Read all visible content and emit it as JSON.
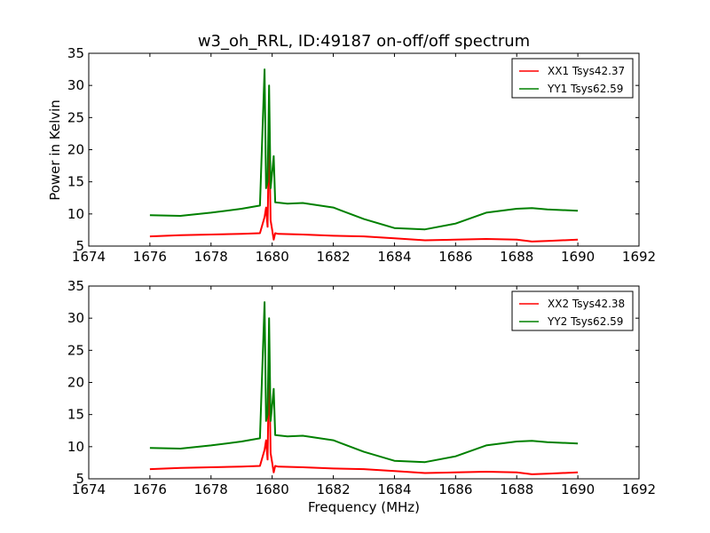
{
  "figure": {
    "title": "w3_oh_RRL, ID:49187 on-off/off spectrum",
    "xlabel": "Frequency (MHz)",
    "ylabel": "Power in Kelvin"
  },
  "chart_data": [
    {
      "type": "line",
      "xlim": [
        1674,
        1692
      ],
      "ylim": [
        5,
        35
      ],
      "xticks": [
        "1674",
        "1676",
        "1678",
        "1680",
        "1682",
        "1684",
        "1686",
        "1688",
        "1690",
        "1692"
      ],
      "yticks": [
        "5",
        "10",
        "15",
        "20",
        "25",
        "30",
        "35"
      ],
      "grid": false,
      "legend_position": "top-right",
      "series": [
        {
          "name": "XX1 Tsys42.37",
          "color": "#ff0000",
          "x": [
            1676.0,
            1677.0,
            1678.0,
            1679.0,
            1679.6,
            1679.75,
            1679.8,
            1679.85,
            1679.9,
            1679.95,
            1680.0,
            1680.05,
            1680.1,
            1680.2,
            1681.0,
            1682.0,
            1683.0,
            1684.0,
            1685.0,
            1686.0,
            1687.0,
            1688.0,
            1688.5,
            1689.0,
            1690.0
          ],
          "y": [
            6.5,
            6.7,
            6.8,
            6.9,
            7.0,
            9.5,
            11.0,
            8.0,
            23.5,
            9.0,
            7.5,
            6.0,
            7.0,
            6.9,
            6.8,
            6.6,
            6.5,
            6.2,
            5.9,
            6.0,
            6.1,
            6.0,
            5.7,
            5.8,
            6.0
          ]
        },
        {
          "name": "YY1 Tsys62.59",
          "color": "#008000",
          "x": [
            1676.0,
            1677.0,
            1678.0,
            1679.0,
            1679.6,
            1679.75,
            1679.8,
            1679.85,
            1679.9,
            1679.95,
            1680.0,
            1680.05,
            1680.1,
            1680.5,
            1681.0,
            1682.0,
            1683.0,
            1684.0,
            1685.0,
            1686.0,
            1687.0,
            1688.0,
            1688.5,
            1689.0,
            1690.0
          ],
          "y": [
            9.8,
            9.7,
            10.2,
            10.8,
            11.3,
            32.5,
            14.0,
            15.0,
            30.0,
            14.0,
            16.5,
            19.0,
            11.8,
            11.6,
            11.7,
            11.0,
            9.2,
            7.8,
            7.6,
            8.5,
            10.2,
            10.8,
            10.9,
            10.7,
            10.5
          ]
        }
      ]
    },
    {
      "type": "line",
      "xlim": [
        1674,
        1692
      ],
      "ylim": [
        5,
        35
      ],
      "xticks": [
        "1674",
        "1676",
        "1678",
        "1680",
        "1682",
        "1684",
        "1686",
        "1688",
        "1690",
        "1692"
      ],
      "yticks": [
        "5",
        "10",
        "15",
        "20",
        "25",
        "30",
        "35"
      ],
      "grid": false,
      "legend_position": "top-right",
      "series": [
        {
          "name": "XX2 Tsys42.38",
          "color": "#ff0000",
          "x": [
            1676.0,
            1677.0,
            1678.0,
            1679.0,
            1679.6,
            1679.75,
            1679.8,
            1679.85,
            1679.9,
            1679.95,
            1680.0,
            1680.05,
            1680.1,
            1680.2,
            1681.0,
            1682.0,
            1683.0,
            1684.0,
            1685.0,
            1686.0,
            1687.0,
            1688.0,
            1688.5,
            1689.0,
            1690.0
          ],
          "y": [
            6.5,
            6.7,
            6.8,
            6.9,
            7.0,
            9.5,
            11.0,
            8.0,
            24.0,
            9.0,
            7.5,
            6.0,
            7.0,
            6.9,
            6.8,
            6.6,
            6.5,
            6.2,
            5.9,
            6.0,
            6.1,
            6.0,
            5.7,
            5.8,
            6.0
          ]
        },
        {
          "name": "YY2 Tsys62.59",
          "color": "#008000",
          "x": [
            1676.0,
            1677.0,
            1678.0,
            1679.0,
            1679.6,
            1679.75,
            1679.8,
            1679.85,
            1679.9,
            1679.95,
            1680.0,
            1680.05,
            1680.1,
            1680.5,
            1681.0,
            1682.0,
            1683.0,
            1684.0,
            1685.0,
            1686.0,
            1687.0,
            1688.0,
            1688.5,
            1689.0,
            1690.0
          ],
          "y": [
            9.8,
            9.7,
            10.2,
            10.8,
            11.3,
            32.5,
            14.0,
            15.0,
            30.0,
            14.0,
            16.5,
            19.0,
            11.8,
            11.6,
            11.7,
            11.0,
            9.2,
            7.8,
            7.6,
            8.5,
            10.2,
            10.8,
            10.9,
            10.7,
            10.5
          ]
        }
      ]
    }
  ]
}
